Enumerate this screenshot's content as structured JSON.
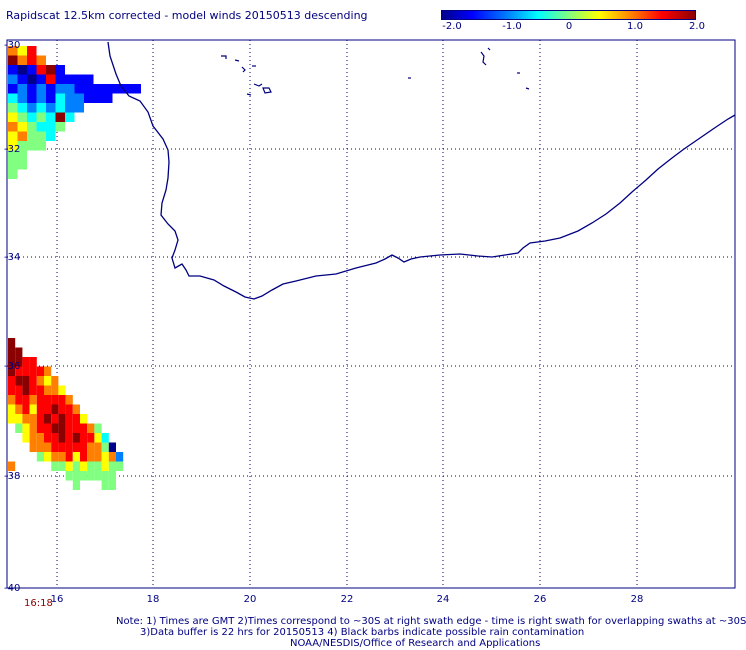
{
  "title": "Rapidscat 12.5km corrected - model winds 20150513 descending",
  "colorbar": {
    "ticks": [
      "-2.0",
      "-1.0",
      "0",
      "1.0",
      "2.0"
    ],
    "colors": [
      "#00008b",
      "#0000ff",
      "#0080ff",
      "#00ffff",
      "#80ff80",
      "#ffff00",
      "#ff8000",
      "#ff0000",
      "#8b0000"
    ]
  },
  "axes": {
    "lon_labels": [
      "16",
      "18",
      "20",
      "22",
      "24",
      "26",
      "28"
    ],
    "lat_labels": [
      "-30",
      "-32",
      "-34",
      "-36",
      "-38",
      "-40"
    ]
  },
  "time_label": "16:18",
  "notes": {
    "line1": "Note: 1) Times are GMT 2)Times correspond to ~30S at right swath edge - time is right swath for overlapping swaths at ~30S",
    "line2": "3)Data buffer is 22 hrs for 20150513 4) Black barbs indicate possible rain contamination",
    "line3": "NOAA/NESDIS/Office of Research and Applications"
  },
  "colors": {
    "coastline": "#000080",
    "grid": "#000080",
    "time_label": "#8b0000"
  },
  "swaths": {
    "north": [
      [
        "#ff8000",
        "#ffff00",
        "#ff0000",
        null,
        null,
        null,
        null,
        null,
        null,
        null,
        null,
        null,
        null,
        null
      ],
      [
        "#8b0000",
        "#ff8000",
        "#ff0000",
        "#ff8000",
        null,
        null,
        null,
        null,
        null,
        null,
        null,
        null,
        null,
        null
      ],
      [
        "#0000ff",
        "#00008b",
        "#0000ff",
        "#ff0000",
        "#8b0000",
        "#0000ff",
        null,
        null,
        null,
        null,
        null,
        null,
        null,
        null
      ],
      [
        "#0080ff",
        "#0000ff",
        "#00008b",
        "#0000ff",
        "#ff0000",
        "#0000ff",
        "#0000ff",
        "#0000ff",
        "#0000ff",
        null,
        null,
        null,
        null,
        null
      ],
      [
        "#0000ff",
        "#0080ff",
        "#0000ff",
        "#0080ff",
        "#0000ff",
        "#0080ff",
        "#0080ff",
        "#0000ff",
        "#0000ff",
        "#0000ff",
        "#0000ff",
        "#0000ff",
        "#0000ff",
        "#0000ff"
      ],
      [
        "#00ffff",
        "#0080ff",
        "#0000ff",
        "#0080ff",
        "#0000ff",
        "#00ffff",
        "#0080ff",
        "#0080ff",
        "#0000ff",
        "#0000ff",
        "#0000ff",
        null,
        null,
        null
      ],
      [
        "#80ff80",
        "#00ffff",
        "#0080ff",
        "#00ffff",
        "#0080ff",
        "#00ffff",
        "#0080ff",
        "#0080ff",
        null,
        null,
        null,
        null,
        null,
        null
      ],
      [
        "#ffff00",
        "#80ff80",
        "#00ffff",
        "#80ff80",
        "#00ffff",
        "#8b0000",
        "#00ffff",
        null,
        null,
        null,
        null,
        null,
        null,
        null
      ],
      [
        "#ff8000",
        "#ffff00",
        "#80ff80",
        "#00ffff",
        "#00ffff",
        "#80ff80",
        null,
        null,
        null,
        null,
        null,
        null,
        null,
        null
      ],
      [
        "#ffff00",
        "#ff8000",
        "#80ff80",
        "#80ff80",
        "#00ffff",
        null,
        null,
        null,
        null,
        null,
        null,
        null,
        null,
        null
      ],
      [
        "#ffff00",
        "#80ff80",
        "#80ff80",
        "#80ff80",
        null,
        null,
        null,
        null,
        null,
        null,
        null,
        null,
        null,
        null
      ],
      [
        "#80ff80",
        "#80ff80",
        null,
        null,
        null,
        null,
        null,
        null,
        null,
        null,
        null,
        null,
        null,
        null
      ],
      [
        "#80ff80",
        "#80ff80",
        null,
        null,
        null,
        null,
        null,
        null,
        null,
        null,
        null,
        null,
        null,
        null
      ],
      [
        "#80ff80",
        null,
        null,
        null,
        null,
        null,
        null,
        null,
        null,
        null,
        null,
        null,
        null,
        null
      ]
    ],
    "south": [
      [
        "#8b0000",
        null,
        null,
        null,
        null,
        null,
        null,
        null,
        null,
        null,
        null,
        null,
        null,
        null,
        null,
        null,
        null,
        null,
        null
      ],
      [
        "#8b0000",
        "#8b0000",
        null,
        null,
        null,
        null,
        null,
        null,
        null,
        null,
        null,
        null,
        null,
        null,
        null,
        null,
        null,
        null,
        null
      ],
      [
        "#8b0000",
        "#8b0000",
        "#ff0000",
        "#ff0000",
        null,
        null,
        null,
        null,
        null,
        null,
        null,
        null,
        null,
        null,
        null,
        null,
        null,
        null,
        null
      ],
      [
        "#8b0000",
        "#ff0000",
        "#ff0000",
        "#ff0000",
        "#ff0000",
        "#ff8000",
        null,
        null,
        null,
        null,
        null,
        null,
        null,
        null,
        null,
        null,
        null,
        null,
        null
      ],
      [
        "#ff0000",
        "#8b0000",
        "#8b0000",
        "#ff0000",
        "#ff8000",
        "#ffff00",
        "#ff8000",
        null,
        null,
        null,
        null,
        null,
        null,
        null,
        null,
        null,
        null,
        null,
        null
      ],
      [
        "#ff0000",
        "#ff0000",
        "#8b0000",
        "#ff0000",
        "#ff0000",
        "#ff8000",
        "#ff8000",
        "#ffff00",
        null,
        null,
        null,
        null,
        null,
        null,
        null,
        null,
        null,
        null,
        null
      ],
      [
        "#ff8000",
        "#ff0000",
        "#ff0000",
        "#ff8000",
        "#ff0000",
        "#ff0000",
        "#ff0000",
        "#ff0000",
        "#ff8000",
        null,
        null,
        null,
        null,
        null,
        null,
        null,
        null,
        null,
        null
      ],
      [
        "#ffff00",
        "#ff8000",
        "#ff0000",
        "#ffff00",
        "#ff0000",
        "#ff0000",
        "#8b0000",
        "#ff0000",
        "#ff0000",
        "#ff8000",
        null,
        null,
        null,
        null,
        null,
        null,
        null,
        null,
        null
      ],
      [
        "#ffff00",
        "#ffff00",
        "#ff8000",
        "#ff8000",
        "#ff0000",
        "#8b0000",
        "#ff0000",
        "#8b0000",
        "#ff0000",
        "#ff0000",
        "#ffff00",
        null,
        null,
        null,
        null,
        null,
        null,
        null,
        null
      ],
      [
        null,
        "#80ff80",
        "#ffff00",
        "#ff8000",
        "#ff0000",
        "#ff0000",
        "#8b0000",
        "#8b0000",
        "#ff0000",
        "#ff0000",
        "#ff0000",
        "#ff8000",
        "#80ff80",
        null,
        null,
        null,
        null,
        null,
        null
      ],
      [
        null,
        null,
        "#ffff00",
        "#ff8000",
        "#ff8000",
        "#ff0000",
        "#ff0000",
        "#8b0000",
        "#ff0000",
        "#8b0000",
        "#ff0000",
        "#ff0000",
        "#ffff00",
        "#00ffff",
        null,
        null,
        null,
        null,
        null
      ],
      [
        null,
        null,
        null,
        "#ff8000",
        "#ff8000",
        "#ff8000",
        "#ff0000",
        "#ff0000",
        "#ff0000",
        "#ff0000",
        "#ff0000",
        "#ff8000",
        "#ff8000",
        "#80ff80",
        "#00008b",
        null,
        null,
        null,
        null
      ],
      [
        null,
        null,
        null,
        null,
        "#80ff80",
        "#ffff00",
        "#ff8000",
        "#ff8000",
        "#ff0000",
        "#ffff00",
        "#ff0000",
        "#ff8000",
        "#ff8000",
        "#ffff00",
        "#ff8000",
        "#0080ff",
        null,
        null,
        null
      ],
      [
        "#ff8000",
        null,
        null,
        null,
        null,
        null,
        "#80ff80",
        "#80ff80",
        "#ffff00",
        "#80ff80",
        "#ffff00",
        "#80ff80",
        "#80ff80",
        "#ffff00",
        "#80ff80",
        "#80ff80",
        null,
        null,
        null
      ],
      [
        null,
        null,
        null,
        null,
        null,
        null,
        null,
        null,
        "#80ff80",
        "#80ff80",
        "#80ff80",
        "#80ff80",
        "#80ff80",
        "#80ff80",
        "#80ff80",
        null,
        null,
        null,
        null
      ],
      [
        null,
        null,
        null,
        null,
        null,
        null,
        null,
        null,
        null,
        "#80ff80",
        null,
        null,
        null,
        "#80ff80",
        "#80ff80",
        null,
        null,
        null,
        null
      ]
    ]
  }
}
